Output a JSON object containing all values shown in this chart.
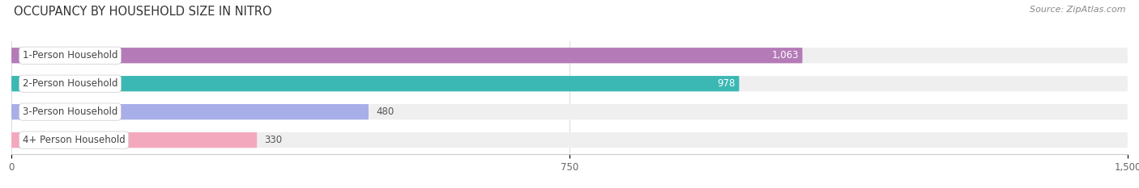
{
  "title": "OCCUPANCY BY HOUSEHOLD SIZE IN NITRO",
  "source": "Source: ZipAtlas.com",
  "categories": [
    "1-Person Household",
    "2-Person Household",
    "3-Person Household",
    "4+ Person Household"
  ],
  "values": [
    1063,
    978,
    480,
    330
  ],
  "bar_colors": [
    "#b57ab8",
    "#3cb8b4",
    "#a8aee8",
    "#f4a8be"
  ],
  "label_colors": [
    "#ffffff",
    "#ffffff",
    "#666666",
    "#666666"
  ],
  "xlim": [
    0,
    1500
  ],
  "xticks": [
    0,
    750,
    1500
  ],
  "figsize": [
    14.06,
    2.33
  ],
  "dpi": 100,
  "title_fontsize": 10.5,
  "source_fontsize": 8,
  "bar_label_fontsize": 8.5,
  "tick_fontsize": 8.5,
  "category_fontsize": 8.5,
  "bg_color": "#ffffff",
  "row_bg_color": "#efefef",
  "grid_color": "#cccccc"
}
